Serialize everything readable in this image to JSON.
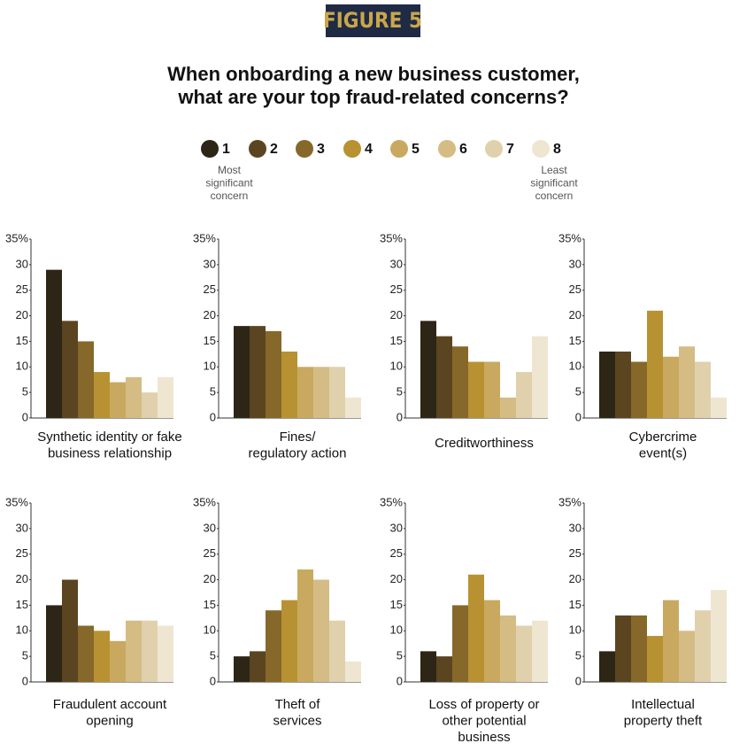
{
  "figure_label": "FIGURE 5",
  "title": [
    "When onboarding a new business customer,",
    "what are your top fraud-related concerns?"
  ],
  "legend": [
    {
      "name": "1",
      "color": "#2d2515"
    },
    {
      "name": "2",
      "color": "#5a4520"
    },
    {
      "name": "3",
      "color": "#86682a"
    },
    {
      "name": "4",
      "color": "#b89232"
    },
    {
      "name": "5",
      "color": "#c9a95f"
    },
    {
      "name": "6",
      "color": "#d4bc84"
    },
    {
      "name": "7",
      "color": "#e0d1ac"
    },
    {
      "name": "8",
      "color": "#efe6d2"
    }
  ],
  "most_note": [
    "Most",
    "significant",
    "concern"
  ],
  "least_note": [
    "Least",
    "significant",
    "concern"
  ],
  "chart_data": [
    {
      "type": "bar",
      "title": [
        "Synthetic identity or fake",
        "business relationship"
      ],
      "values": [
        29,
        19,
        15,
        9,
        7,
        8,
        5,
        8
      ],
      "ylim": [
        0,
        35
      ],
      "yticks": [
        0,
        5,
        10,
        15,
        20,
        25,
        30,
        {
          "value": 35,
          "label": "35%"
        }
      ]
    },
    {
      "type": "bar",
      "title": [
        "Fines/",
        "regulatory action"
      ],
      "values": [
        18,
        18,
        17,
        13,
        10,
        10,
        10,
        4
      ],
      "ylim": [
        0,
        35
      ],
      "yticks": [
        0,
        5,
        10,
        15,
        20,
        25,
        30,
        {
          "value": 35,
          "label": "35%"
        }
      ]
    },
    {
      "type": "bar",
      "title": [
        "Creditworthiness"
      ],
      "values": [
        19,
        16,
        14,
        11,
        11,
        4,
        9,
        16
      ],
      "ylim": [
        0,
        35
      ],
      "yticks": [
        0,
        5,
        10,
        15,
        20,
        25,
        30,
        {
          "value": 35,
          "label": "35%"
        }
      ]
    },
    {
      "type": "bar",
      "title": [
        "Cybercrime",
        "event(s)"
      ],
      "values": [
        13,
        13,
        11,
        21,
        12,
        14,
        11,
        4
      ],
      "ylim": [
        0,
        35
      ],
      "yticks": [
        0,
        5,
        10,
        15,
        20,
        25,
        30,
        {
          "value": 35,
          "label": "35%"
        }
      ]
    },
    {
      "type": "bar",
      "title": [
        "Fraudulent account",
        "opening"
      ],
      "values": [
        15,
        20,
        11,
        10,
        8,
        12,
        12,
        11
      ],
      "ylim": [
        0,
        35
      ],
      "yticks": [
        0,
        5,
        10,
        15,
        20,
        25,
        30,
        {
          "value": 35,
          "label": "35%"
        }
      ]
    },
    {
      "type": "bar",
      "title": [
        "Theft of",
        "services"
      ],
      "values": [
        5,
        6,
        14,
        16,
        22,
        20,
        12,
        4
      ],
      "ylim": [
        0,
        35
      ],
      "yticks": [
        0,
        5,
        10,
        15,
        20,
        25,
        30,
        {
          "value": 35,
          "label": "35%"
        }
      ]
    },
    {
      "type": "bar",
      "title": [
        "Loss of property or",
        "other potential",
        "business"
      ],
      "values": [
        6,
        5,
        15,
        21,
        16,
        13,
        11,
        12
      ],
      "ylim": [
        0,
        35
      ],
      "yticks": [
        0,
        5,
        10,
        15,
        20,
        25,
        30,
        {
          "value": 35,
          "label": "35%"
        }
      ]
    },
    {
      "type": "bar",
      "title": [
        "Intellectual",
        "property theft"
      ],
      "values": [
        6,
        13,
        13,
        9,
        16,
        10,
        14,
        18
      ],
      "ylim": [
        0,
        35
      ],
      "yticks": [
        0,
        5,
        10,
        15,
        20,
        25,
        30,
        {
          "value": 35,
          "label": "35%"
        }
      ]
    }
  ]
}
